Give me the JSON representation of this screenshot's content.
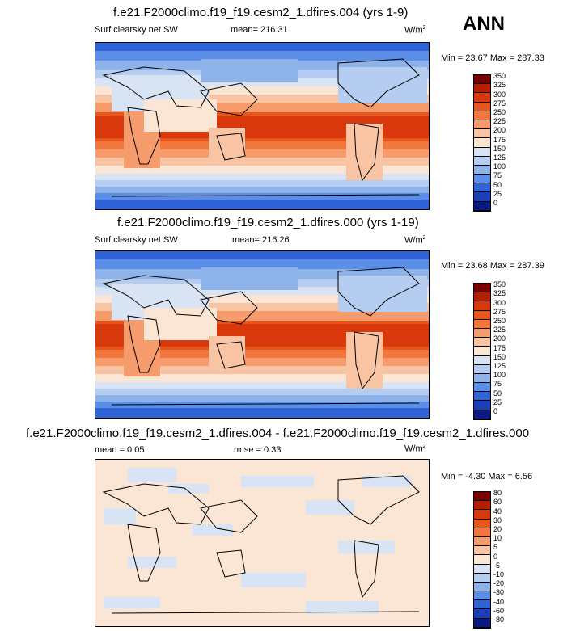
{
  "season": "ANN",
  "panels": [
    {
      "title": "f.e21.F2000climo.f19_f19.cesm2_1.dfires.004 (yrs 1-9)",
      "variable": "Surf clearsky net SW",
      "stat": "mean= 216.31",
      "units": "W/m",
      "units_sup": "2",
      "minmax": "Min =  23.67 Max = 287.33"
    },
    {
      "title": "f.e21.F2000climo.f19_f19.cesm2_1.dfires.000 (yrs 1-19)",
      "variable": "Surf clearsky net SW",
      "stat": "mean= 216.26",
      "units": "W/m",
      "units_sup": "2",
      "minmax": "Min =  23.68 Max = 287.39"
    },
    {
      "title": "f.e21.F2000climo.f19_f19.cesm2_1.dfires.004 - f.e21.F2000climo.f19_f19.cesm2_1.dfires.000",
      "mean": "mean =   0.05",
      "rmse": "rmse =   0.33",
      "units": "W/m",
      "units_sup": "2",
      "minmax": "Min =  -4.30 Max =  6.56"
    }
  ],
  "chart_data": [
    {
      "type": "heatmap",
      "title": "f.e21.F2000climo.f19_f19.cesm2_1.dfires.004 (yrs 1-9)",
      "variable": "Surf clearsky net SW",
      "units": "W/m2",
      "mean": 216.31,
      "min": 23.67,
      "max": 287.33,
      "levels": [
        350,
        325,
        300,
        275,
        250,
        225,
        200,
        175,
        150,
        125,
        100,
        75,
        50,
        25,
        0
      ]
    },
    {
      "type": "heatmap",
      "title": "f.e21.F2000climo.f19_f19.cesm2_1.dfires.000 (yrs 1-19)",
      "variable": "Surf clearsky net SW",
      "units": "W/m2",
      "mean": 216.26,
      "min": 23.68,
      "max": 287.39,
      "levels": [
        350,
        325,
        300,
        275,
        250,
        225,
        200,
        175,
        150,
        125,
        100,
        75,
        50,
        25,
        0
      ]
    },
    {
      "type": "heatmap",
      "title": "f.e21.F2000climo.f19_f19.cesm2_1.dfires.004 - f.e21.F2000climo.f19_f19.cesm2_1.dfires.000",
      "units": "W/m2",
      "mean": 0.05,
      "rmse": 0.33,
      "min": -4.3,
      "max": 6.56,
      "levels": [
        80,
        60,
        40,
        30,
        20,
        10,
        5,
        0,
        -5,
        -10,
        -20,
        -30,
        -40,
        -60,
        -80
      ]
    }
  ],
  "colors": {
    "abs": [
      "#7a0000",
      "#b51e00",
      "#d8380c",
      "#e9561c",
      "#f2773c",
      "#f69c6c",
      "#f8c4a4",
      "#fbe6d6",
      "#d8e4f4",
      "#b4cdf0",
      "#8eb2ea",
      "#5b8ee6",
      "#2f63d8",
      "#1a3fb8",
      "#0b1a80"
    ],
    "diff": [
      "#7a0000",
      "#b51e00",
      "#d8380c",
      "#e9561c",
      "#f2773c",
      "#f69c6c",
      "#f8c4a4",
      "#fbe6d6",
      "#d8e4f4",
      "#b4cdf0",
      "#8eb2ea",
      "#5b8ee6",
      "#2f63d8",
      "#1a3fb8",
      "#0b1a80"
    ]
  }
}
